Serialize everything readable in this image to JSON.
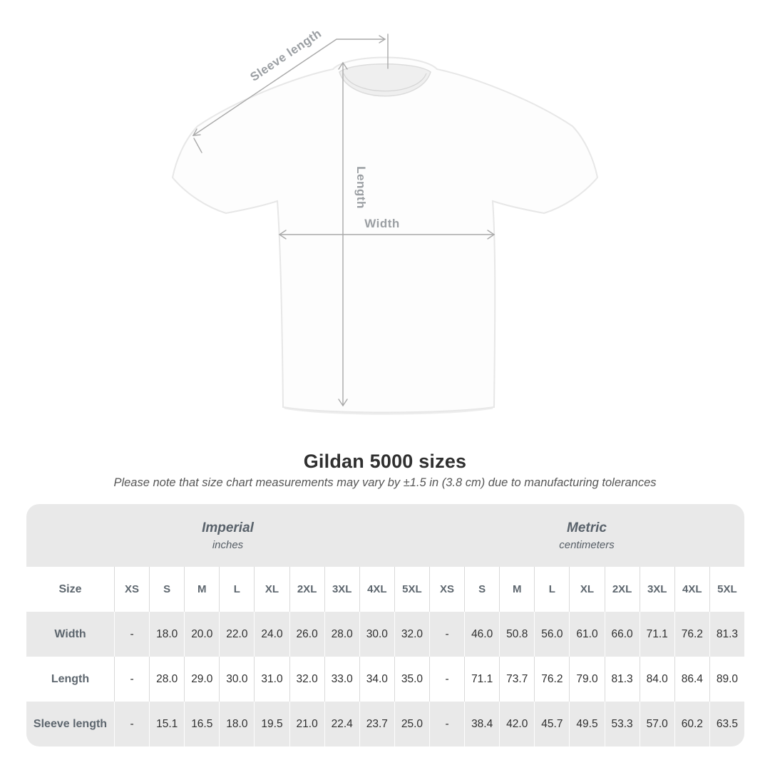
{
  "diagram": {
    "sleeve_length_label": "Sleeve length",
    "length_label": "Length",
    "width_label": "Width",
    "arrow_color": "#a9a9a9",
    "label_color": "#9b9fa3",
    "shirt_fill": "#fdfdfd",
    "shirt_edge": "#e7e7e7"
  },
  "heading": {
    "title": "Gildan 5000 sizes",
    "subtitle": "Please note that size chart measurements may vary by ±1.5 in (3.8 cm) due to manufacturing tolerances"
  },
  "table": {
    "size_label": "Size",
    "sections": [
      {
        "name": "Imperial",
        "unit": "inches"
      },
      {
        "name": "Metric",
        "unit": "centimeters"
      }
    ],
    "sizes": [
      "XS",
      "S",
      "M",
      "L",
      "XL",
      "2XL",
      "3XL",
      "4XL",
      "5XL"
    ],
    "rows": [
      {
        "label": "Width",
        "imperial": [
          "-",
          "18.0",
          "20.0",
          "22.0",
          "24.0",
          "26.0",
          "28.0",
          "30.0",
          "32.0"
        ],
        "metric": [
          "-",
          "46.0",
          "50.8",
          "56.0",
          "61.0",
          "66.0",
          "71.1",
          "76.2",
          "81.3"
        ]
      },
      {
        "label": "Length",
        "imperial": [
          "-",
          "28.0",
          "29.0",
          "30.0",
          "31.0",
          "32.0",
          "33.0",
          "34.0",
          "35.0"
        ],
        "metric": [
          "-",
          "71.1",
          "73.7",
          "76.2",
          "79.0",
          "81.3",
          "84.0",
          "86.4",
          "89.0"
        ]
      },
      {
        "label": "Sleeve length",
        "imperial": [
          "-",
          "15.1",
          "16.5",
          "18.0",
          "19.5",
          "21.0",
          "22.4",
          "23.7",
          "25.0"
        ],
        "metric": [
          "-",
          "38.4",
          "42.0",
          "45.7",
          "49.5",
          "53.3",
          "57.0",
          "60.2",
          "63.5"
        ]
      }
    ],
    "colors": {
      "band_bg": "#e9e9e9",
      "alt_row_bg": "#e9e9e9",
      "header_text": "#5d666e",
      "value_text": "#2f2f2f"
    }
  }
}
